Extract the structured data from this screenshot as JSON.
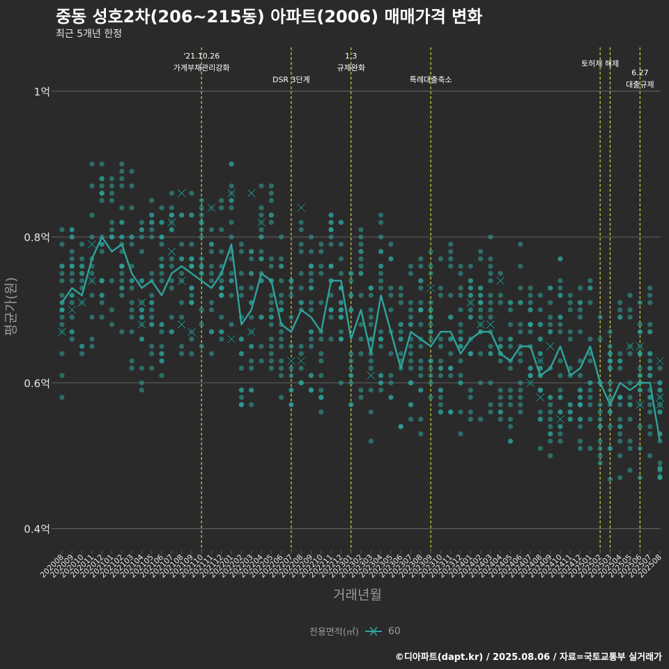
{
  "title": "중동 성호2차(206~215동) 아파트(2006) 매매가격 변화",
  "subtitle": "최근 5개년 한정",
  "caption": "©디아파트(dapt.kr) / 2025.08.06 / 자료=국토교통부 실거래가",
  "legend": {
    "title": "전용면적(㎡)",
    "label": "60"
  },
  "colors": {
    "background": "#2b2a2b",
    "series": "#2ea59c",
    "grid": "#5c5c5c",
    "event_line": "#d4d633",
    "text": "#ffffff",
    "axis_text": "#9a9a9a"
  },
  "chart_data": {
    "type": "scatter",
    "xlabel": "거래년월",
    "ylabel": "평균가(원)",
    "ylim": [
      0.37,
      1.06
    ],
    "y_ticks": [
      {
        "value": 0.4,
        "label": "0.4억"
      },
      {
        "value": 0.6,
        "label": "0.6억"
      },
      {
        "value": 0.8,
        "label": "0.8억"
      },
      {
        "value": 1.0,
        "label": "1억"
      }
    ],
    "categories": [
      "202008",
      "202009",
      "202010",
      "202011",
      "202012",
      "202101",
      "202102",
      "202103",
      "202104",
      "202105",
      "202106",
      "202107",
      "202108",
      "202109",
      "202110",
      "202111",
      "202112",
      "202201",
      "202202",
      "202203",
      "202204",
      "202205",
      "202206",
      "202207",
      "202208",
      "202209",
      "202210",
      "202211",
      "202212",
      "202301",
      "202302",
      "202303",
      "202304",
      "202305",
      "202306",
      "202307",
      "202308",
      "202309",
      "202310",
      "202311",
      "202312",
      "202401",
      "202402",
      "202403",
      "202404",
      "202405",
      "202406",
      "202407",
      "202408",
      "202409",
      "202410",
      "202411",
      "202412",
      "202501",
      "202502",
      "202503",
      "202504",
      "202505",
      "202506",
      "202507",
      "202508"
    ],
    "series": [
      {
        "name": "60",
        "average": [
          0.71,
          0.73,
          0.72,
          0.77,
          0.8,
          0.78,
          0.79,
          0.75,
          0.73,
          0.74,
          0.72,
          0.75,
          0.76,
          0.75,
          0.74,
          0.73,
          0.75,
          0.79,
          0.68,
          0.7,
          0.75,
          0.74,
          0.68,
          0.67,
          0.7,
          0.69,
          0.67,
          0.74,
          0.74,
          0.66,
          0.7,
          0.64,
          0.72,
          0.67,
          0.62,
          0.67,
          0.66,
          0.65,
          0.67,
          0.67,
          0.64,
          0.66,
          0.67,
          0.67,
          0.64,
          0.63,
          0.65,
          0.65,
          0.61,
          0.62,
          0.65,
          0.61,
          0.62,
          0.65,
          0.6,
          0.57,
          0.6,
          0.59,
          0.6,
          0.6,
          0.52
        ],
        "marked": [
          [
            0,
            0.67
          ],
          [
            1,
            0.7
          ],
          [
            2,
            0.71
          ],
          [
            3,
            0.79
          ],
          [
            3,
            0.74
          ],
          [
            8,
            0.71
          ],
          [
            8,
            0.68
          ],
          [
            11,
            0.82
          ],
          [
            11,
            0.78
          ],
          [
            12,
            0.86
          ],
          [
            12,
            0.74
          ],
          [
            12,
            0.68
          ],
          [
            13,
            0.67
          ],
          [
            15,
            0.84
          ],
          [
            17,
            0.86
          ],
          [
            17,
            0.66
          ],
          [
            19,
            0.86
          ],
          [
            19,
            0.67
          ],
          [
            20,
            0.82
          ],
          [
            23,
            0.63
          ],
          [
            24,
            0.84
          ],
          [
            24,
            0.63
          ],
          [
            31,
            0.61
          ],
          [
            37,
            0.73
          ],
          [
            41,
            0.71
          ],
          [
            42,
            0.68
          ],
          [
            43,
            0.68
          ],
          [
            44,
            0.74
          ],
          [
            47,
            0.6
          ],
          [
            48,
            0.58
          ],
          [
            48,
            0.63
          ],
          [
            49,
            0.65
          ],
          [
            50,
            0.55
          ],
          [
            57,
            0.65
          ],
          [
            58,
            0.65
          ],
          [
            58,
            0.57
          ],
          [
            60,
            0.57
          ],
          [
            61,
            0.63
          ],
          [
            62,
            0.58
          ]
        ]
      }
    ],
    "events": [
      {
        "position": "202110",
        "label": "'21.10.26\n가계부채관리강화"
      },
      {
        "position": "202207",
        "label": "DSR 3단계"
      },
      {
        "position": "202301",
        "label": "1.3\n규제완화"
      },
      {
        "position": "202309",
        "label": "특례대출축소"
      },
      {
        "position": "202502",
        "label": "토허제 해제"
      },
      {
        "position": "202503",
        "label": ""
      },
      {
        "position": "202506",
        "label": "6.27\n대출규제"
      }
    ]
  }
}
